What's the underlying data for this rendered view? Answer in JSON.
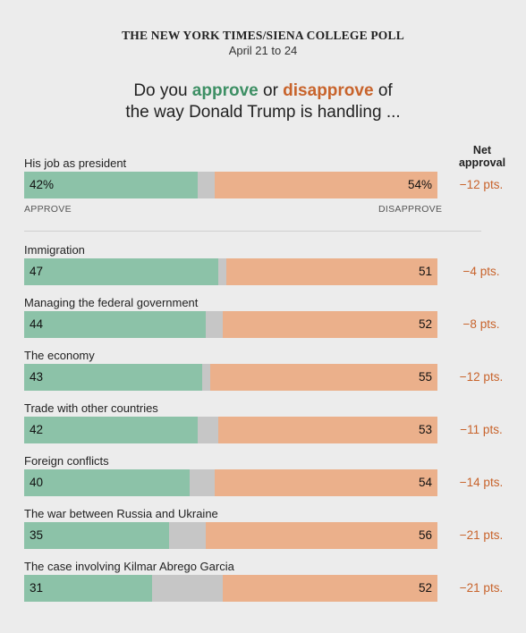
{
  "header": {
    "kicker": "THE NEW YORK TIMES/SIENA COLLEGE POLL",
    "dates": "April 21 to 24"
  },
  "question": {
    "part1": "Do you ",
    "approve": "approve",
    "part2": " or ",
    "disapprove": "disapprove",
    "part3": " of",
    "line2": "the way Donald Trump is handling ..."
  },
  "net_header": {
    "line1": "Net",
    "line2": "approval"
  },
  "axis": {
    "approve": "APPROVE",
    "disapprove": "DISAPPROVE"
  },
  "colors": {
    "approve": "#8cc2a8",
    "neutral": "#c6c6c6",
    "disapprove": "#ebb08b",
    "approve_text": "#3d8f64",
    "disapprove_text": "#c8632b"
  },
  "chart_data": {
    "type": "bar",
    "stacked": true,
    "series": [
      {
        "name": "approve",
        "values": [
          42,
          47,
          44,
          43,
          42,
          40,
          35,
          31
        ]
      },
      {
        "name": "disapprove",
        "values": [
          54,
          51,
          52,
          55,
          53,
          54,
          56,
          52
        ]
      }
    ],
    "categories": [
      "His job as president",
      "Immigration",
      "Managing the federal government",
      "The economy",
      "Trade with other countries",
      "Foreign conflicts",
      "The war between Russia and Ukraine",
      "The case involving Kilmar Abrego Garcia"
    ],
    "approve_labels": [
      "42%",
      "47",
      "44",
      "43",
      "42",
      "40",
      "35",
      "31"
    ],
    "disapprove_labels": [
      "54%",
      "51",
      "52",
      "55",
      "53",
      "54",
      "56",
      "52"
    ],
    "net_labels": [
      "−12 pts.",
      "−4 pts.",
      "−8 pts.",
      "−12 pts.",
      "−11 pts.",
      "−14 pts.",
      "−21 pts.",
      "−21 pts."
    ],
    "xlim": [
      0,
      100
    ]
  }
}
